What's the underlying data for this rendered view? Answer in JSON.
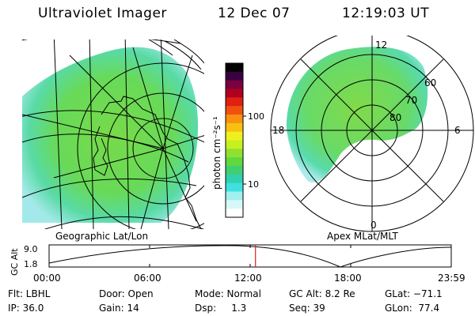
{
  "header": {
    "instrument": "Ultraviolet Imager",
    "date": "12 Dec 07",
    "time": "12:19:03 UT"
  },
  "left_panel": {
    "caption": "Geographic Lat/Lon"
  },
  "right_panel": {
    "caption": "Apex MLat/MLT",
    "mlt_labels": [
      "12",
      "18",
      "6",
      "0"
    ],
    "mlat_labels": [
      "60",
      "70",
      "80"
    ]
  },
  "colorbar": {
    "label": "photon cm⁻²s⁻¹",
    "ticks": [
      "100",
      "10"
    ],
    "scale": "log",
    "colors": [
      "#000000",
      "#3a0040",
      "#7a0040",
      "#b00020",
      "#e02010",
      "#f05010",
      "#f89010",
      "#f8c010",
      "#f0f020",
      "#c8f020",
      "#90e030",
      "#60d840",
      "#40d070",
      "#30d0b0",
      "#40e0e0",
      "#a0f0f0",
      "#d8f8f8",
      "#ffffff"
    ]
  },
  "timeline": {
    "ylabel": "GC Alt",
    "y_ticks": [
      "9.0",
      "1.8"
    ],
    "x_ticks": [
      "00:00",
      "06:00",
      "12:00",
      "18:00",
      "23:59"
    ],
    "current_time_frac": 0.5132,
    "marker_color": "#e02020"
  },
  "footer": {
    "filter": "Flt: LBHL",
    "door": "Door: Open",
    "mode": "Mode: Normal",
    "gc_alt": "GC Alt: 8.2 Re",
    "glat": "GLat: −71.1",
    "ip": "IP: 36.0",
    "gain": "Gain: 14",
    "dsp": "Dsp:     1.3",
    "seq": "Seq: 39",
    "glon": "GLon:  77.4"
  }
}
